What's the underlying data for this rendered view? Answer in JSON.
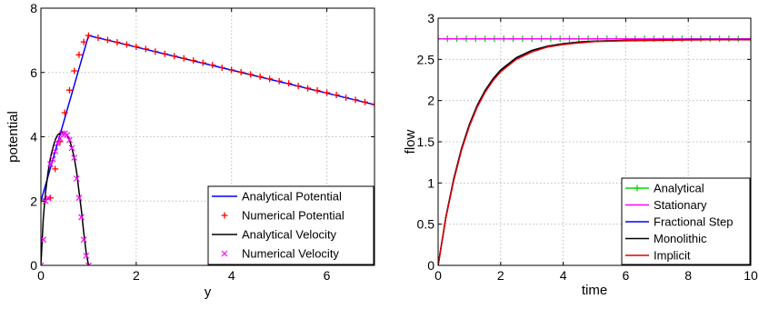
{
  "chart_data": [
    {
      "type": "line",
      "title": "",
      "xlabel": "y",
      "ylabel": "potential",
      "xlim": [
        0,
        7
      ],
      "ylim": [
        0,
        8
      ],
      "xticks": [
        0,
        2,
        4,
        6
      ],
      "yticks": [
        0,
        2,
        4,
        6,
        8
      ],
      "grid": true,
      "legend_position": "bottom-right",
      "series": [
        {
          "name": "Analytical Potential",
          "color": "#0000ff",
          "style": "line",
          "x": [
            0,
            1,
            7
          ],
          "y": [
            2.0,
            7.15,
            5.0
          ]
        },
        {
          "name": "Numerical Potential",
          "color": "#ff0000",
          "style": "plus-markers",
          "x": [
            0,
            0.1,
            0.2,
            0.3,
            0.4,
            0.5,
            0.6,
            0.7,
            0.8,
            0.9,
            1.0,
            1.2,
            1.4,
            1.6,
            1.8,
            2.0,
            2.2,
            2.4,
            2.6,
            2.8,
            3.0,
            3.2,
            3.4,
            3.6,
            3.8,
            4.0,
            4.2,
            4.4,
            4.6,
            4.8,
            5.0,
            5.2,
            5.4,
            5.6,
            5.8,
            6.0,
            6.2,
            6.4,
            6.6,
            6.8,
            7.0
          ],
          "y": [
            2.0,
            2.05,
            2.1,
            3.0,
            3.85,
            4.75,
            5.45,
            6.05,
            6.55,
            6.95,
            7.15,
            7.08,
            7.01,
            6.94,
            6.87,
            6.8,
            6.73,
            6.65,
            6.58,
            6.51,
            6.44,
            6.37,
            6.3,
            6.23,
            6.15,
            6.08,
            6.01,
            5.94,
            5.87,
            5.8,
            5.73,
            5.66,
            5.58,
            5.51,
            5.44,
            5.37,
            5.3,
            5.22,
            5.15,
            5.08,
            5.0
          ]
        },
        {
          "name": "Analytical Velocity",
          "color": "#000000",
          "style": "line",
          "x": [
            0,
            0.05,
            0.1,
            0.15,
            0.2,
            0.25,
            0.3,
            0.35,
            0.4,
            0.45,
            0.5,
            0.55,
            0.6,
            0.65,
            0.7,
            0.75,
            0.8,
            0.85,
            0.9,
            0.95,
            1.0
          ],
          "y": [
            0,
            1.45,
            2.3,
            2.9,
            3.35,
            3.65,
            3.9,
            4.05,
            4.12,
            4.15,
            4.12,
            4.05,
            3.9,
            3.65,
            3.35,
            2.9,
            2.3,
            1.7,
            1.0,
            0.4,
            0
          ]
        },
        {
          "name": "Numerical Velocity",
          "color": "#ff00ff",
          "style": "x-markers",
          "x": [
            0,
            0.05,
            0.1,
            0.15,
            0.2,
            0.25,
            0.3,
            0.35,
            0.4,
            0.45,
            0.5,
            0.55,
            0.6,
            0.65,
            0.7,
            0.75,
            0.8,
            0.85,
            0.9,
            0.95,
            1.0
          ],
          "y": [
            0,
            0.8,
            2.0,
            2.1,
            3.15,
            3.3,
            3.55,
            3.8,
            3.95,
            4.1,
            4.1,
            4.05,
            3.9,
            3.65,
            3.35,
            2.7,
            2.1,
            1.5,
            0.8,
            0.3,
            0
          ]
        }
      ]
    },
    {
      "type": "line",
      "title": "",
      "xlabel": "time",
      "ylabel": "flow",
      "xlim": [
        0,
        10
      ],
      "ylim": [
        0,
        3
      ],
      "xticks": [
        0,
        2,
        4,
        6,
        8,
        10
      ],
      "yticks": [
        0,
        0.5,
        1,
        1.5,
        2,
        2.5,
        3
      ],
      "grid": true,
      "legend_position": "bottom-right",
      "series": [
        {
          "name": "Analytical",
          "color": "#00dd00",
          "style": "line-plus-markers",
          "x": [
            0,
            0.3,
            0.6,
            0.9,
            1.2,
            1.5,
            1.8,
            2.1,
            2.4,
            2.7,
            3.0,
            3.3,
            3.6,
            3.9,
            4.2,
            4.5,
            4.8,
            5.1,
            5.4,
            5.7,
            6.0,
            6.3,
            6.6,
            6.9,
            7.2,
            7.5,
            7.8,
            8.1,
            8.4,
            8.7,
            9.0,
            9.3,
            9.6,
            10.0
          ],
          "y": [
            2.75,
            2.75,
            2.75,
            2.75,
            2.75,
            2.75,
            2.75,
            2.75,
            2.75,
            2.75,
            2.75,
            2.75,
            2.75,
            2.75,
            2.75,
            2.75,
            2.75,
            2.75,
            2.75,
            2.75,
            2.75,
            2.75,
            2.75,
            2.75,
            2.75,
            2.75,
            2.75,
            2.75,
            2.75,
            2.75,
            2.75,
            2.75,
            2.75,
            2.75
          ]
        },
        {
          "name": "Stationary",
          "color": "#ff00ff",
          "style": "line",
          "x": [
            0,
            10
          ],
          "y": [
            2.75,
            2.75
          ]
        },
        {
          "name": "Fractional Step",
          "color": "#0000ff",
          "style": "line",
          "x": [
            0,
            0.25,
            0.5,
            0.75,
            1,
            1.25,
            1.5,
            1.75,
            2,
            2.5,
            3,
            3.5,
            4,
            4.5,
            5,
            6,
            7,
            8,
            9,
            10
          ],
          "y": [
            0,
            0.59,
            1.05,
            1.42,
            1.71,
            1.94,
            2.12,
            2.26,
            2.37,
            2.52,
            2.61,
            2.66,
            2.69,
            2.71,
            2.72,
            2.73,
            2.735,
            2.74,
            2.74,
            2.74
          ]
        },
        {
          "name": "Monolithic",
          "color": "#000000",
          "style": "line",
          "x": [
            0,
            0.25,
            0.5,
            0.75,
            1,
            1.25,
            1.5,
            1.75,
            2,
            2.5,
            3,
            3.5,
            4,
            4.5,
            5,
            6,
            7,
            8,
            9,
            10
          ],
          "y": [
            0,
            0.59,
            1.05,
            1.42,
            1.71,
            1.94,
            2.12,
            2.26,
            2.37,
            2.52,
            2.61,
            2.66,
            2.69,
            2.71,
            2.72,
            2.73,
            2.735,
            2.74,
            2.74,
            2.74
          ]
        },
        {
          "name": "Implicit",
          "color": "#dd0000",
          "style": "line",
          "x": [
            0,
            0.25,
            0.5,
            0.75,
            1,
            1.25,
            1.5,
            1.75,
            2,
            2.5,
            3,
            3.5,
            4,
            4.5,
            5,
            6,
            7,
            8,
            9,
            10
          ],
          "y": [
            0,
            0.58,
            1.03,
            1.4,
            1.69,
            1.92,
            2.1,
            2.24,
            2.35,
            2.5,
            2.59,
            2.65,
            2.68,
            2.7,
            2.715,
            2.725,
            2.73,
            2.735,
            2.74,
            2.74
          ]
        }
      ]
    }
  ]
}
